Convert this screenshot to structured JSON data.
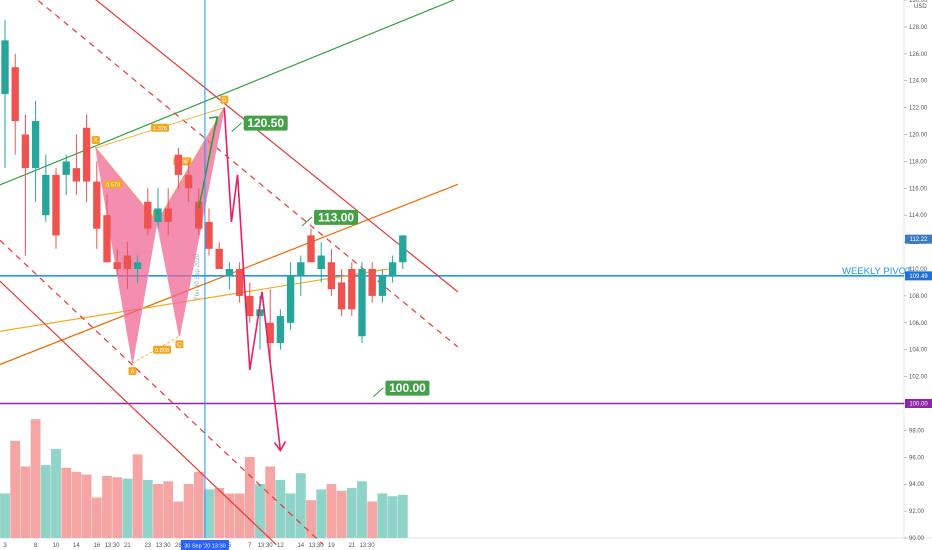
{
  "chart_data": {
    "type": "candlestick",
    "currency": "USD",
    "y_axis": {
      "min": 90,
      "max": 130,
      "ticks": [
        "90.00",
        "92.00",
        "94.00",
        "96.00",
        "98.00",
        "100.00",
        "102.00",
        "104.00",
        "106.00",
        "108.00",
        "110.00",
        "112.00",
        "114.00",
        "116.00",
        "118.00",
        "120.00",
        "122.00",
        "124.00",
        "126.00",
        "128.00",
        "130.00"
      ]
    },
    "x_axis": {
      "ticks": [
        {
          "label": "3",
          "i": 0
        },
        {
          "label": "8",
          "i": 3
        },
        {
          "label": "10",
          "i": 5
        },
        {
          "label": "14",
          "i": 7
        },
        {
          "label": "16",
          "i": 9
        },
        {
          "label": "13:30",
          "i": 10.5
        },
        {
          "label": "21",
          "i": 12
        },
        {
          "label": "23",
          "i": 14
        },
        {
          "label": "13:30",
          "i": 15.5
        },
        {
          "label": "28",
          "i": 17
        },
        {
          "label": "13:30",
          "i": 18.3
        },
        {
          "label": "5",
          "i": 22
        },
        {
          "label": "7",
          "i": 24
        },
        {
          "label": "13:30",
          "i": 25.5
        },
        {
          "label": "12",
          "i": 27
        },
        {
          "label": "14",
          "i": 29
        },
        {
          "label": "13:30",
          "i": 30.5
        },
        {
          "label": "19",
          "i": 32
        },
        {
          "label": "21",
          "i": 34
        },
        {
          "label": "13:30",
          "i": 35.5
        }
      ],
      "cursor_label": "30 Sep '20   13:30",
      "cursor_i": 19.6,
      "vertical_text": "Thu 30 Sep 2020"
    },
    "candles": [
      {
        "o": 123.0,
        "h": 128.5,
        "l": 117.5,
        "c": 127.0
      },
      {
        "o": 125.0,
        "h": 126.0,
        "l": 118.5,
        "c": 121.0
      },
      {
        "o": 120.0,
        "h": 121.5,
        "l": 111.0,
        "c": 117.5
      },
      {
        "o": 117.5,
        "h": 122.5,
        "l": 115.0,
        "c": 121.0
      },
      {
        "o": 114.0,
        "h": 118.5,
        "l": 113.5,
        "c": 117.0
      },
      {
        "o": 117.0,
        "h": 117.5,
        "l": 111.5,
        "c": 112.5
      },
      {
        "o": 117.0,
        "h": 118.5,
        "l": 115.5,
        "c": 118.0
      },
      {
        "o": 117.5,
        "h": 120.0,
        "l": 115.5,
        "c": 116.5
      },
      {
        "o": 120.5,
        "h": 121.5,
        "l": 115.0,
        "c": 116.5
      },
      {
        "o": 116.5,
        "h": 118.0,
        "l": 111.5,
        "c": 113.0
      },
      {
        "o": 114.0,
        "h": 115.5,
        "l": 110.5,
        "c": 110.5
      },
      {
        "o": 110.5,
        "h": 111.5,
        "l": 109.5,
        "c": 110.0
      },
      {
        "o": 111.0,
        "h": 112.0,
        "l": 108.5,
        "c": 110.0
      },
      {
        "o": 110.0,
        "h": 111.0,
        "l": 109.0,
        "c": 110.5
      },
      {
        "o": 115.0,
        "h": 116.0,
        "l": 112.5,
        "c": 113.0
      },
      {
        "o": 113.5,
        "h": 116.0,
        "l": 113.0,
        "c": 114.5
      },
      {
        "o": 114.5,
        "h": 116.0,
        "l": 112.5,
        "c": 113.5
      },
      {
        "o": 118.5,
        "h": 119.0,
        "l": 116.0,
        "c": 117.0
      },
      {
        "o": 117.0,
        "h": 118.0,
        "l": 115.0,
        "c": 116.0
      },
      {
        "o": 115.0,
        "h": 116.0,
        "l": 112.5,
        "c": 113.0
      },
      {
        "o": 113.5,
        "h": 114.5,
        "l": 111.0,
        "c": 111.5
      },
      {
        "o": 111.5,
        "h": 112.0,
        "l": 110.0,
        "c": 110.0
      },
      {
        "o": 109.5,
        "h": 110.5,
        "l": 108.5,
        "c": 110.0
      },
      {
        "o": 110.0,
        "h": 110.5,
        "l": 107.5,
        "c": 108.0
      },
      {
        "o": 108.0,
        "h": 109.0,
        "l": 106.0,
        "c": 106.5
      },
      {
        "o": 106.5,
        "h": 108.0,
        "l": 104.0,
        "c": 107.0
      },
      {
        "o": 106.0,
        "h": 108.5,
        "l": 103.0,
        "c": 104.5
      },
      {
        "o": 104.5,
        "h": 107.0,
        "l": 104.0,
        "c": 106.5
      },
      {
        "o": 106.0,
        "h": 110.5,
        "l": 105.5,
        "c": 109.5
      },
      {
        "o": 109.5,
        "h": 111.0,
        "l": 108.0,
        "c": 110.5
      },
      {
        "o": 112.5,
        "h": 113.0,
        "l": 110.5,
        "c": 110.5
      },
      {
        "o": 110.0,
        "h": 112.0,
        "l": 109.0,
        "c": 111.0
      },
      {
        "o": 110.5,
        "h": 111.5,
        "l": 108.0,
        "c": 108.5
      },
      {
        "o": 109.0,
        "h": 110.0,
        "l": 106.5,
        "c": 107.0
      },
      {
        "o": 110.0,
        "h": 110.5,
        "l": 106.5,
        "c": 107.0
      },
      {
        "o": 105.0,
        "h": 110.5,
        "l": 104.5,
        "c": 110.0
      },
      {
        "o": 110.0,
        "h": 110.5,
        "l": 107.5,
        "c": 108.0
      },
      {
        "o": 108.0,
        "h": 110.0,
        "l": 107.5,
        "c": 109.5
      },
      {
        "o": 109.5,
        "h": 111.0,
        "l": 109.0,
        "c": 110.5
      },
      {
        "o": 110.5,
        "h": 112.5,
        "l": 110.0,
        "c": 112.5
      }
    ],
    "volume": [
      {
        "v": 0.33,
        "up": true
      },
      {
        "v": 0.72,
        "up": false
      },
      {
        "v": 0.53,
        "up": false
      },
      {
        "v": 0.88,
        "up": false
      },
      {
        "v": 0.54,
        "up": true
      },
      {
        "v": 0.66,
        "up": true
      },
      {
        "v": 0.52,
        "up": false
      },
      {
        "v": 0.49,
        "up": false
      },
      {
        "v": 0.47,
        "up": false
      },
      {
        "v": 0.3,
        "up": false
      },
      {
        "v": 0.46,
        "up": false
      },
      {
        "v": 0.45,
        "up": false
      },
      {
        "v": 0.44,
        "up": true
      },
      {
        "v": 0.62,
        "up": false
      },
      {
        "v": 0.43,
        "up": true
      },
      {
        "v": 0.4,
        "up": false
      },
      {
        "v": 0.42,
        "up": false
      },
      {
        "v": 0.27,
        "up": false
      },
      {
        "v": 0.4,
        "up": false
      },
      {
        "v": 0.49,
        "up": false
      },
      {
        "v": 0.36,
        "up": true
      },
      {
        "v": 0.37,
        "up": false
      },
      {
        "v": 0.33,
        "up": false
      },
      {
        "v": 0.33,
        "up": false
      },
      {
        "v": 0.6,
        "up": false
      },
      {
        "v": 0.4,
        "up": true
      },
      {
        "v": 0.53,
        "up": false
      },
      {
        "v": 0.43,
        "up": true
      },
      {
        "v": 0.33,
        "up": true
      },
      {
        "v": 0.48,
        "up": true
      },
      {
        "v": 0.28,
        "up": false
      },
      {
        "v": 0.36,
        "up": true
      },
      {
        "v": 0.4,
        "up": false
      },
      {
        "v": 0.35,
        "up": false
      },
      {
        "v": 0.37,
        "up": true
      },
      {
        "v": 0.42,
        "up": true
      },
      {
        "v": 0.27,
        "up": false
      },
      {
        "v": 0.33,
        "up": true
      },
      {
        "v": 0.31,
        "up": true
      },
      {
        "v": 0.32,
        "up": true
      }
    ],
    "price_labels": [
      {
        "value": 112.22,
        "text": "112.22",
        "color": "#3a7cc2"
      },
      {
        "value": 109.49,
        "text": "109.49",
        "color": "#1e6fd9"
      },
      {
        "value": 100.0,
        "text": "100.00",
        "color": "#8e24aa"
      }
    ],
    "horizontal_lines": [
      {
        "name": "weekly-pivot",
        "value": 109.49,
        "color": "#2196f3",
        "label": "WEEKLY PIVOT"
      },
      {
        "name": "support",
        "value": 100.0,
        "color": "#8e24aa"
      }
    ],
    "trendlines": [
      {
        "name": "green-upper",
        "color": "#2e9e3e",
        "from": {
          "i": -5.2,
          "p": 114.8
        },
        "to": {
          "i": 44.0,
          "p": 130.0
        }
      },
      {
        "name": "orange-channel",
        "color": "#ef6c00",
        "from": {
          "i": -5.2,
          "p": 101.5
        },
        "to": {
          "i": 44.4,
          "p": 116.3
        }
      },
      {
        "name": "orange-fib",
        "color": "#f9a825",
        "from": {
          "i": -5.2,
          "p": 104.8
        },
        "to": {
          "i": 37.6,
          "p": 110.0
        }
      },
      {
        "name": "red-top",
        "color": "#e53935",
        "from": {
          "i": 7.3,
          "p": 131.0
        },
        "to": {
          "i": 44.4,
          "p": 108.3
        }
      },
      {
        "name": "red-mid-dashed",
        "color": "#e53935",
        "dashed": true,
        "from": {
          "i": 1.6,
          "p": 131.0
        },
        "to": {
          "i": 44.4,
          "p": 104.2
        }
      },
      {
        "name": "red-lower-dashed",
        "color": "#e53935",
        "dashed": true,
        "from": {
          "i": -5.2,
          "p": 115.5
        },
        "to": {
          "i": 31.2,
          "p": 89.5
        }
      },
      {
        "name": "red-bottom",
        "color": "#e53935",
        "from": {
          "i": -5.2,
          "p": 112.5
        },
        "to": {
          "i": 26.6,
          "p": 89.5
        }
      }
    ],
    "pattern": {
      "points": [
        {
          "label": "X",
          "i": 8.9,
          "p": 119.0
        },
        {
          "label": "A",
          "i": 12.5,
          "p": 103.0
        },
        {
          "label": "B",
          "i": 14.9,
          "p": 113.5
        },
        {
          "label": "C",
          "i": 17.1,
          "p": 105.0
        },
        {
          "label": "D",
          "i": 21.5,
          "p": 122.0
        }
      ],
      "ratios": [
        {
          "text": "0.573",
          "i": 10.6,
          "p": 116.3
        },
        {
          "text": "0.808",
          "i": 15.4,
          "p": 104.0
        },
        {
          "text": "2.245",
          "i": 17.4,
          "p": 118.0
        },
        {
          "text": "1.326",
          "i": 15.2,
          "p": 120.5
        }
      ]
    },
    "projection": {
      "path": [
        {
          "i": 21.5,
          "p": 122.0
        },
        {
          "i": 22.2,
          "p": 113.5
        },
        {
          "i": 22.8,
          "p": 117.0
        },
        {
          "i": 24.0,
          "p": 102.5
        },
        {
          "i": 25.2,
          "p": 108.3
        },
        {
          "i": 27.0,
          "p": 96.5
        }
      ],
      "green_arrow": [
        {
          "i": 19.0,
          "p": 114.5
        },
        {
          "i": 20.8,
          "p": 121.3
        }
      ]
    },
    "targets": [
      {
        "text": "120.50",
        "i": 23.4,
        "p": 121.4
      },
      {
        "text": "113.00",
        "i": 30.3,
        "p": 114.4
      },
      {
        "text": "100.00",
        "i": 37.3,
        "p": 101.7
      }
    ]
  }
}
